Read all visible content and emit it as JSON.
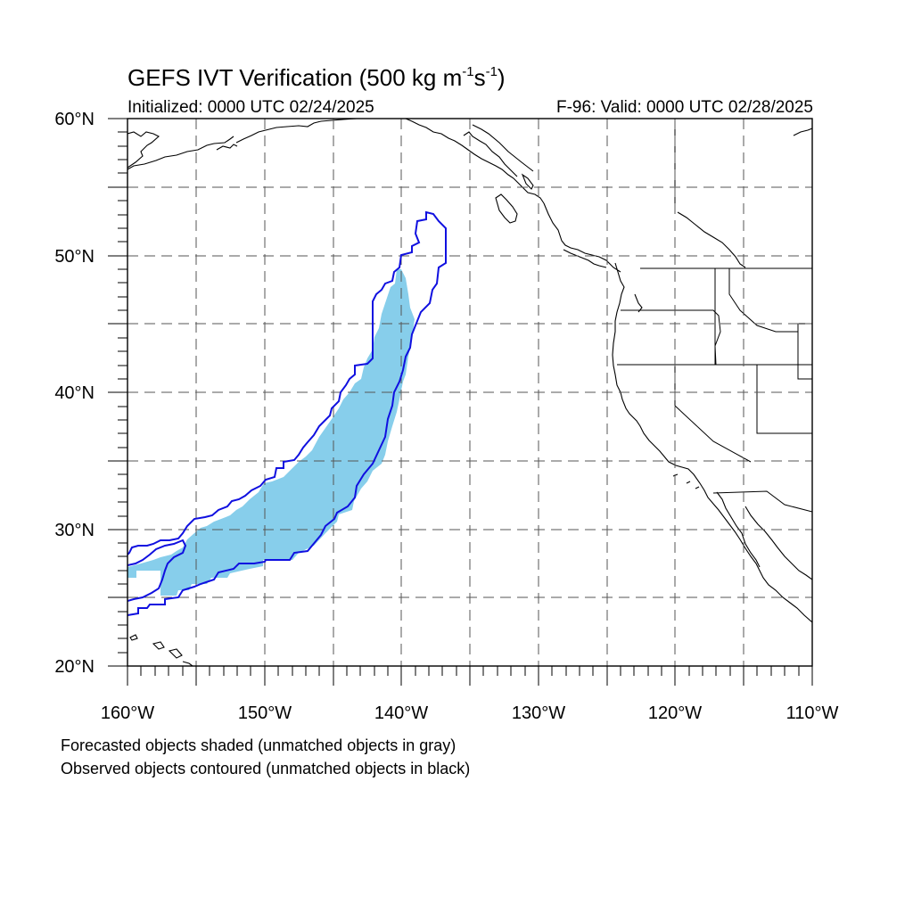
{
  "title": {
    "main": "GEFS IVT Verification (500 kg m",
    "exp1": "-1",
    "mid": "s",
    "exp2": "-1",
    "end": ")"
  },
  "subtitle_left": "Initialized: 0000 UTC 02/24/2025",
  "subtitle_right": "F-96: Valid: 0000 UTC 02/28/2025",
  "captions": [
    "Forecasted objects shaded (unmatched objects in gray)",
    "Observed objects contoured (unmatched objects in black)"
  ],
  "map": {
    "projection": "cylindrical equidistant",
    "lon_range": [
      -160,
      -110
    ],
    "lat_range": [
      20,
      60
    ],
    "grid": "dashed, every 5 degrees",
    "lon_labels": [
      "160°W",
      "150°W",
      "140°W",
      "130°W",
      "120°W",
      "110°W"
    ],
    "lat_labels": [
      "20°N",
      "30°N",
      "40°N",
      "50°N",
      "60°N"
    ],
    "colors": {
      "forecast_fill": "#87ceeb",
      "observed_contour": "#1010e0",
      "coastline": "#000000",
      "grid": "#555555"
    }
  }
}
